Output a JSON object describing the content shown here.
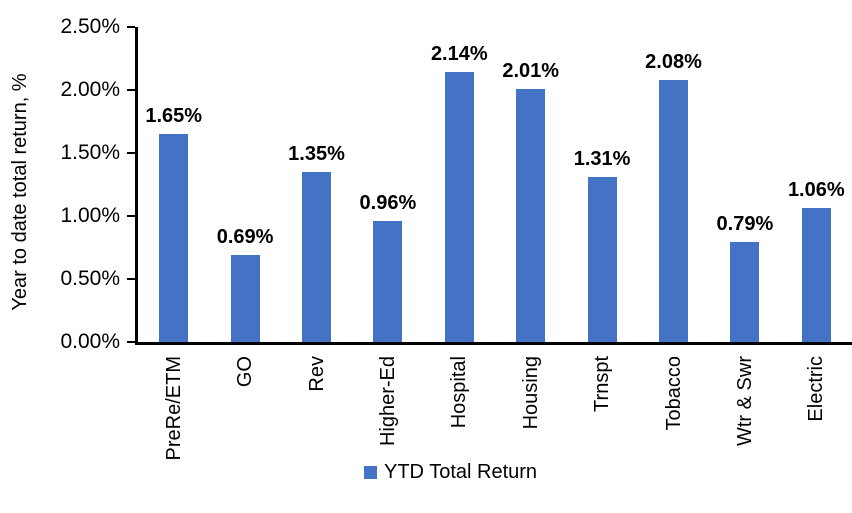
{
  "chart_data": {
    "type": "bar",
    "title": "",
    "ylabel": "Year to date total return, %",
    "xlabel": "",
    "categories": [
      "PreRe/ETM",
      "GO",
      "Rev",
      "Higher-Ed",
      "Hospital",
      "Housing",
      "Trnspt",
      "Tobacco",
      "Wtr & Swr",
      "Electric"
    ],
    "series": [
      {
        "name": "YTD Total Return",
        "values": [
          1.65,
          0.69,
          1.35,
          0.96,
          2.14,
          2.01,
          1.31,
          2.08,
          0.79,
          1.06
        ],
        "labels": [
          "1.65%",
          "0.69%",
          "1.35%",
          "0.96%",
          "2.14%",
          "2.01%",
          "1.31%",
          "2.08%",
          "0.79%",
          "1.06%"
        ],
        "color": "#4472C4"
      }
    ],
    "ylim": [
      0,
      2.5
    ],
    "yticks": [
      {
        "value": 0.0,
        "label": "0.00%"
      },
      {
        "value": 0.5,
        "label": "0.50%"
      },
      {
        "value": 1.0,
        "label": "1.00%"
      },
      {
        "value": 1.5,
        "label": "1.50%"
      },
      {
        "value": 2.0,
        "label": "2.00%"
      },
      {
        "value": 2.5,
        "label": "2.50%"
      }
    ],
    "grid": false,
    "legend_position": "bottom",
    "axis_color": "#000000",
    "text_color": "#000000",
    "background_color": "#FFFFFF"
  }
}
